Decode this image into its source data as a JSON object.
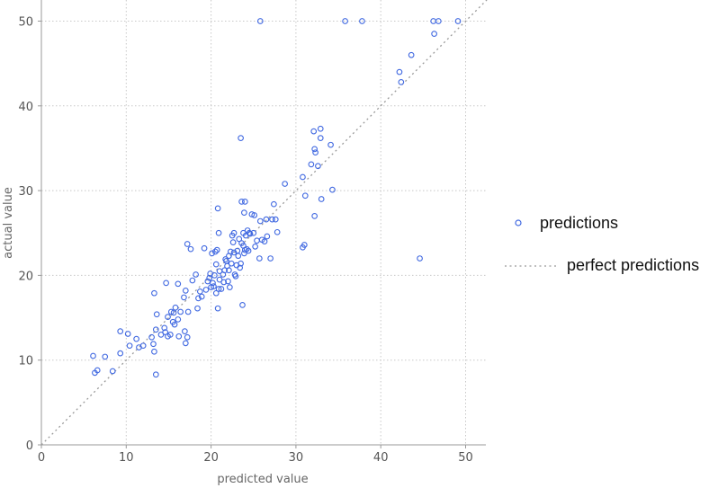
{
  "chart_data": {
    "type": "scatter",
    "xlabel": "predicted value",
    "ylabel": "actual value",
    "xlim": [
      0,
      52.5
    ],
    "ylim": [
      0,
      52.5
    ],
    "xticks": [
      0,
      10,
      20,
      30,
      40,
      50
    ],
    "yticks": [
      0,
      10,
      20,
      30,
      40,
      50
    ],
    "grid": true,
    "legend_position": "right",
    "colors": {
      "points": "#4169E1",
      "reference_line": "#999999"
    },
    "series": [
      {
        "name": "predictions",
        "kind": "points",
        "points": [
          [
            25.8,
            50
          ],
          [
            35.8,
            50
          ],
          [
            37.8,
            50
          ],
          [
            46.2,
            50
          ],
          [
            46.8,
            50
          ],
          [
            49.1,
            50
          ],
          [
            46.3,
            48.5
          ],
          [
            43.6,
            46
          ],
          [
            42.2,
            44
          ],
          [
            42.4,
            42.8
          ],
          [
            32.9,
            37.3
          ],
          [
            32.1,
            37
          ],
          [
            32.9,
            36.2
          ],
          [
            23.5,
            36.2
          ],
          [
            34.1,
            35.4
          ],
          [
            32.2,
            34.9
          ],
          [
            32.3,
            34.5
          ],
          [
            31.8,
            33.1
          ],
          [
            32.6,
            32.9
          ],
          [
            30.8,
            31.6
          ],
          [
            28.7,
            30.8
          ],
          [
            34.3,
            30.1
          ],
          [
            31.1,
            29.4
          ],
          [
            33.0,
            29.0
          ],
          [
            23.6,
            28.7
          ],
          [
            24.0,
            28.7
          ],
          [
            27.4,
            28.4
          ],
          [
            20.8,
            27.9
          ],
          [
            23.9,
            27.4
          ],
          [
            32.2,
            27.0
          ],
          [
            25.1,
            27.1
          ],
          [
            26.5,
            26.6
          ],
          [
            27.2,
            26.6
          ],
          [
            27.6,
            26.6
          ],
          [
            25.8,
            26.4
          ],
          [
            30.8,
            23.3
          ],
          [
            31.0,
            23.6
          ],
          [
            44.6,
            22.0
          ],
          [
            6.1,
            10.5
          ],
          [
            7.5,
            10.4
          ],
          [
            6.3,
            8.5
          ],
          [
            6.6,
            8.8
          ],
          [
            8.4,
            8.7
          ],
          [
            9.3,
            10.8
          ],
          [
            9.3,
            13.4
          ],
          [
            10.2,
            13.1
          ],
          [
            10.4,
            11.7
          ],
          [
            11.2,
            12.5
          ],
          [
            11.5,
            11.5
          ],
          [
            12.0,
            11.7
          ],
          [
            13.0,
            12.7
          ],
          [
            13.2,
            11.9
          ],
          [
            13.3,
            11.0
          ],
          [
            13.5,
            8.3
          ],
          [
            13.3,
            17.9
          ],
          [
            13.6,
            15.4
          ],
          [
            13.5,
            13.6
          ],
          [
            14.1,
            13.0
          ],
          [
            14.5,
            13.8
          ],
          [
            14.6,
            13.3
          ],
          [
            14.7,
            19.1
          ],
          [
            14.9,
            12.8
          ],
          [
            14.9,
            15.1
          ],
          [
            15.2,
            13.0
          ],
          [
            15.3,
            15.7
          ],
          [
            15.5,
            14.5
          ],
          [
            15.6,
            15.6
          ],
          [
            15.7,
            14.2
          ],
          [
            15.8,
            16.2
          ],
          [
            16.1,
            14.8
          ],
          [
            16.1,
            19.0
          ],
          [
            16.4,
            15.7
          ],
          [
            16.2,
            12.8
          ],
          [
            16.9,
            13.4
          ],
          [
            17.0,
            12.0
          ],
          [
            17.2,
            12.7
          ],
          [
            16.8,
            17.4
          ],
          [
            17.0,
            18.2
          ],
          [
            17.3,
            15.7
          ],
          [
            17.2,
            23.7
          ],
          [
            17.6,
            23.1
          ],
          [
            17.8,
            19.4
          ],
          [
            18.2,
            20.1
          ],
          [
            18.5,
            17.3
          ],
          [
            18.7,
            18.1
          ],
          [
            18.4,
            16.1
          ],
          [
            18.9,
            17.5
          ],
          [
            19.2,
            23.2
          ],
          [
            19.4,
            18.3
          ],
          [
            19.6,
            19.3
          ],
          [
            19.8,
            19.7
          ],
          [
            19.9,
            20.2
          ],
          [
            20.0,
            18.6
          ],
          [
            20.1,
            22.6
          ],
          [
            20.2,
            19.1
          ],
          [
            20.3,
            18.7
          ],
          [
            20.4,
            20.0
          ],
          [
            20.6,
            17.9
          ],
          [
            20.5,
            22.8
          ],
          [
            20.6,
            21.3
          ],
          [
            20.7,
            23.0
          ],
          [
            20.8,
            16.1
          ],
          [
            20.9,
            18.4
          ],
          [
            21.0,
            19.5
          ],
          [
            21.0,
            20.5
          ],
          [
            21.2,
            18.4
          ],
          [
            20.9,
            25.0
          ],
          [
            21.4,
            20.1
          ],
          [
            21.5,
            19.2
          ],
          [
            21.6,
            20.6
          ],
          [
            21.8,
            21.7
          ],
          [
            21.9,
            21.1
          ],
          [
            22.0,
            19.3
          ],
          [
            22.1,
            20.6
          ],
          [
            22.2,
            18.6
          ],
          [
            22.1,
            22.3
          ],
          [
            22.3,
            22.8
          ],
          [
            22.4,
            21.4
          ],
          [
            22.5,
            24.7
          ],
          [
            22.6,
            23.9
          ],
          [
            22.7,
            22.7
          ],
          [
            22.8,
            20.1
          ],
          [
            22.9,
            19.9
          ],
          [
            23.0,
            21.2
          ],
          [
            23.1,
            22.9
          ],
          [
            23.2,
            22.3
          ],
          [
            23.3,
            24.3
          ],
          [
            23.4,
            20.9
          ],
          [
            23.5,
            21.4
          ],
          [
            23.6,
            23.8
          ],
          [
            23.7,
            16.5
          ],
          [
            23.8,
            25.0
          ],
          [
            23.9,
            22.6
          ],
          [
            24.0,
            23.0
          ],
          [
            24.1,
            24.7
          ],
          [
            24.2,
            23.1
          ],
          [
            24.3,
            25.3
          ],
          [
            24.4,
            22.9
          ],
          [
            24.6,
            24.9
          ],
          [
            24.8,
            27.2
          ],
          [
            25.0,
            25.0
          ],
          [
            25.2,
            23.4
          ],
          [
            25.4,
            24.1
          ],
          [
            25.7,
            22.0
          ],
          [
            26.0,
            24.2
          ],
          [
            26.3,
            24.0
          ],
          [
            26.6,
            24.6
          ],
          [
            27.0,
            22.0
          ],
          [
            27.8,
            25.1
          ],
          [
            24.5,
            25.0
          ],
          [
            23.8,
            23.5
          ],
          [
            22.7,
            25.0
          ],
          [
            21.7,
            21.9
          ]
        ]
      },
      {
        "name": "perfect predictions",
        "kind": "reference-line",
        "from": [
          0,
          0
        ],
        "to": [
          52.5,
          52.5
        ]
      }
    ]
  }
}
